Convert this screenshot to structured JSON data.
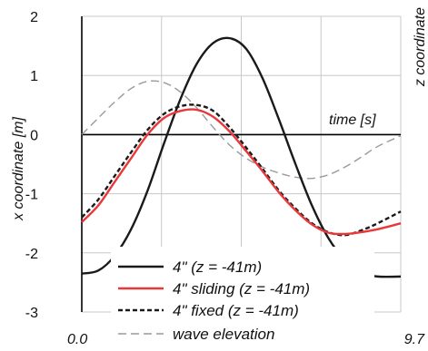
{
  "chart_data": {
    "type": "line",
    "xlabel": "time [s]",
    "ylabel": "x coordinate [m]",
    "ylabel_right": "z coordinate",
    "xlim": [
      0.0,
      9.7
    ],
    "ylim": [
      -3,
      2
    ],
    "x_tick_labels": [
      "0.0",
      "9.7"
    ],
    "y_ticks": [
      2,
      1,
      0,
      -1,
      -2,
      -3
    ],
    "grid": true,
    "legend_position": "bottom",
    "series": [
      {
        "name": "4\" (z = -41m)",
        "color": "#1a1a1a",
        "dash": "solid",
        "x": [
          0,
          0.5,
          1.0,
          1.5,
          2.0,
          2.5,
          3.0,
          3.5,
          4.0,
          4.5,
          5.0,
          5.5,
          6.0,
          6.5,
          7.0,
          7.5,
          8.0,
          8.5,
          9.0,
          9.7
        ],
        "y": [
          -2.35,
          -2.3,
          -2.05,
          -1.6,
          -0.95,
          -0.15,
          0.6,
          1.2,
          1.55,
          1.63,
          1.45,
          0.95,
          0.25,
          -0.5,
          -1.2,
          -1.75,
          -2.12,
          -2.33,
          -2.4,
          -2.4
        ]
      },
      {
        "name": "4\" sliding (z = -41m)",
        "color": "#e8383a",
        "dash": "solid",
        "x": [
          0,
          0.5,
          1.0,
          1.5,
          2.0,
          2.5,
          3.0,
          3.5,
          4.0,
          4.5,
          5.0,
          5.5,
          6.0,
          6.5,
          7.0,
          7.5,
          8.0,
          8.5,
          9.0,
          9.7
        ],
        "y": [
          -1.48,
          -1.2,
          -0.8,
          -0.4,
          0.0,
          0.28,
          0.4,
          0.42,
          0.3,
          0.05,
          -0.28,
          -0.62,
          -0.98,
          -1.28,
          -1.52,
          -1.66,
          -1.68,
          -1.65,
          -1.6,
          -1.5
        ]
      },
      {
        "name": "4\" fixed (z = -41m)",
        "color": "#1a1a1a",
        "dash": "dashed",
        "x": [
          0,
          0.5,
          1.0,
          1.5,
          2.0,
          2.5,
          3.0,
          3.5,
          4.0,
          4.5,
          5.0,
          5.5,
          6.0,
          6.5,
          7.0,
          7.5,
          8.0,
          8.5,
          9.0,
          9.7
        ],
        "y": [
          -1.4,
          -1.1,
          -0.7,
          -0.3,
          0.08,
          0.35,
          0.48,
          0.5,
          0.4,
          0.12,
          -0.22,
          -0.58,
          -0.95,
          -1.25,
          -1.5,
          -1.65,
          -1.7,
          -1.62,
          -1.5,
          -1.3
        ]
      },
      {
        "name": "wave elevation",
        "color": "#9a9a9a",
        "dash": "dashed",
        "x": [
          0,
          0.5,
          1.0,
          1.5,
          2.0,
          2.5,
          3.0,
          3.5,
          4.0,
          4.5,
          5.0,
          5.5,
          6.0,
          6.5,
          7.0,
          7.5,
          8.0,
          8.5,
          9.0,
          9.7
        ],
        "y": [
          0.0,
          0.28,
          0.55,
          0.78,
          0.9,
          0.88,
          0.72,
          0.45,
          0.12,
          -0.18,
          -0.4,
          -0.55,
          -0.65,
          -0.72,
          -0.74,
          -0.68,
          -0.55,
          -0.38,
          -0.2,
          -0.02
        ]
      }
    ]
  }
}
